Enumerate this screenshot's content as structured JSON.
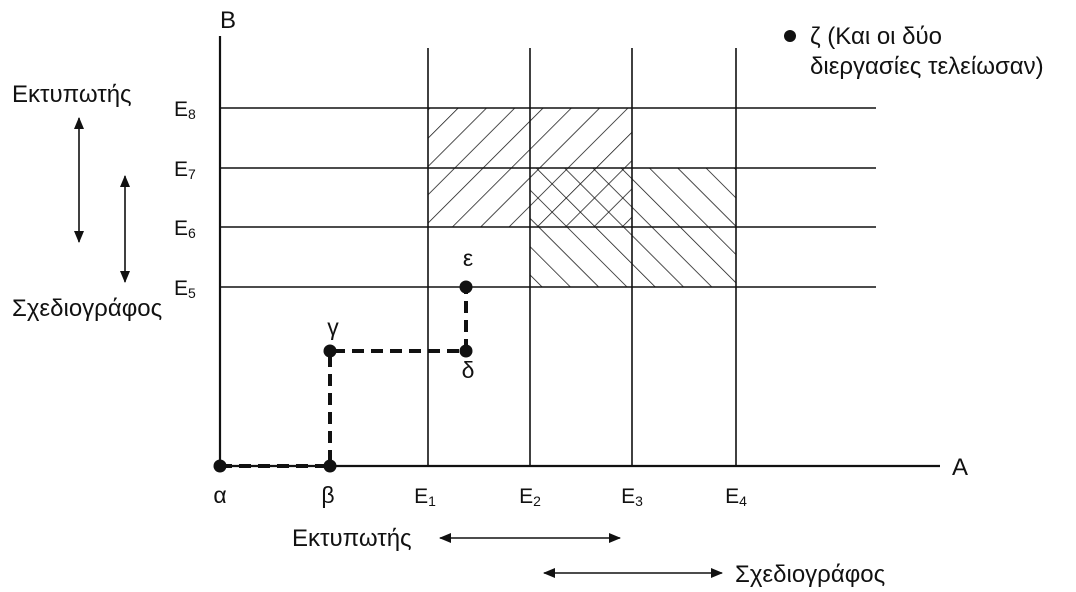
{
  "axes": {
    "x_label": "A",
    "y_label": "B"
  },
  "x_ticks": [
    {
      "base": "α",
      "sub": ""
    },
    {
      "base": "β",
      "sub": ""
    },
    {
      "base": "E",
      "sub": "1"
    },
    {
      "base": "E",
      "sub": "2"
    },
    {
      "base": "E",
      "sub": "3"
    },
    {
      "base": "E",
      "sub": "4"
    }
  ],
  "y_ticks": [
    {
      "base": "E",
      "sub": "5"
    },
    {
      "base": "E",
      "sub": "6"
    },
    {
      "base": "E",
      "sub": "7"
    },
    {
      "base": "E",
      "sub": "8"
    }
  ],
  "points": {
    "alpha": "α",
    "beta": "β",
    "gamma": "γ",
    "delta": "δ",
    "epsilon": "ε"
  },
  "resources": {
    "printer": "Εκτυπωτής",
    "plotter": "Σχεδιογράφος"
  },
  "legend": {
    "line1": "ζ (Και οι δύο",
    "line2": "διεργασίες τελείωσαν)"
  },
  "colors": {
    "ink": "#111111",
    "background": "#ffffff"
  }
}
